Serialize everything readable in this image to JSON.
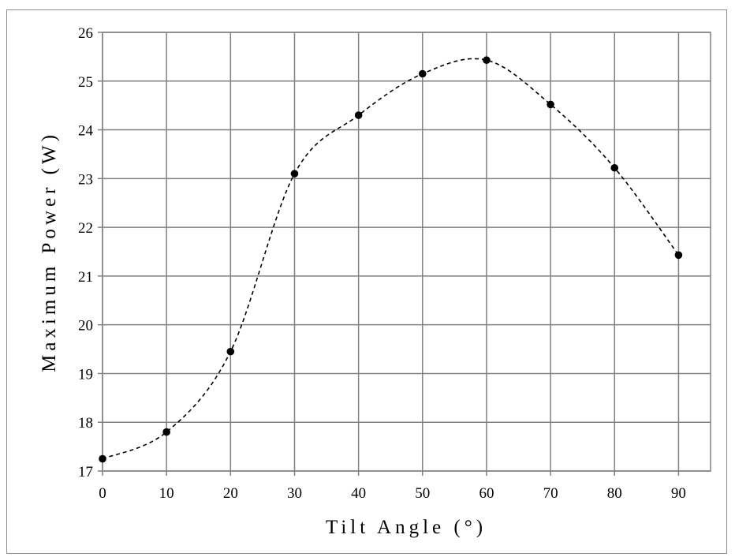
{
  "chart_data": {
    "type": "scatter",
    "title": "",
    "xlabel": "Tilt Angle (°)",
    "ylabel": "Maximum Power (W)",
    "xlim": [
      0,
      95
    ],
    "ylim": [
      17,
      26
    ],
    "x_ticks": [
      0,
      10,
      20,
      30,
      40,
      50,
      60,
      70,
      80,
      90
    ],
    "y_ticks": [
      17,
      18,
      19,
      20,
      21,
      22,
      23,
      24,
      25,
      26
    ],
    "grid": true,
    "legend": "none",
    "series": [
      {
        "x": [
          0,
          10,
          20,
          30,
          40,
          50,
          60,
          70,
          80,
          90
        ],
        "y": [
          17.25,
          17.8,
          19.45,
          23.1,
          24.3,
          25.15,
          25.43,
          24.52,
          23.22,
          21.43
        ],
        "marker": "circle",
        "line_style": "dashed-smooth",
        "color": "#000000"
      }
    ]
  }
}
